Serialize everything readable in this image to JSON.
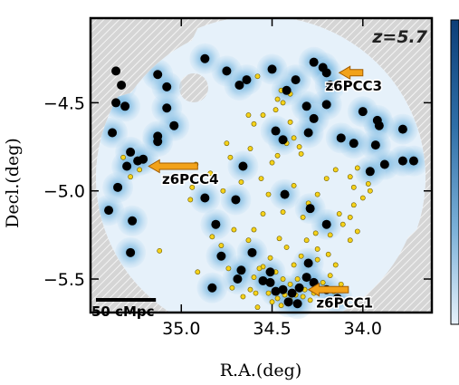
{
  "chart_data": {
    "type": "scatter",
    "title": "",
    "xlabel": "R.A.(deg)",
    "ylabel": "Decl.(deg)",
    "xlim": [
      35.5,
      33.62
    ],
    "ylim": [
      -5.69,
      -4.02
    ],
    "x_reversed": true,
    "xticks": [
      35.0,
      34.5,
      34.0
    ],
    "xtick_labels": [
      "35.0",
      "34.5",
      "34.0"
    ],
    "yticks": [
      -4.5,
      -5.0,
      -5.5
    ],
    "ytick_labels": [
      "−4.5",
      "−5.0",
      "−5.5"
    ],
    "annotations": {
      "redshift": "z=5.7",
      "scale_bar": "50 cMpc",
      "scale_bar_length_deg": 0.33
    },
    "protoclusters": [
      {
        "label": "z6PCC3",
        "ra": 34.13,
        "dec": -4.33,
        "arrow_from": [
          34.0,
          -4.33
        ],
        "text_at": [
          34.05,
          -4.4
        ]
      },
      {
        "label": "z6PCC4",
        "ra": 35.18,
        "dec": -4.86,
        "arrow_from": [
          34.91,
          -4.86
        ],
        "text_at": [
          34.95,
          -4.93
        ]
      },
      {
        "label": "z6PCC1",
        "ra": 34.3,
        "dec": -5.56,
        "arrow_from": [
          34.08,
          -5.56
        ],
        "text_at": [
          34.1,
          -5.63
        ]
      }
    ],
    "series": [
      {
        "name": "",
        "role": "bright galaxies with density halo",
        "marker": "black-disc",
        "points": [
          [
            35.36,
            -4.32
          ],
          [
            35.33,
            -4.4
          ],
          [
            35.36,
            -4.5
          ],
          [
            35.31,
            -4.52
          ],
          [
            35.13,
            -4.34
          ],
          [
            35.08,
            -4.41
          ],
          [
            34.87,
            -4.25
          ],
          [
            34.75,
            -4.32
          ],
          [
            34.68,
            -4.4
          ],
          [
            34.64,
            -4.37
          ],
          [
            34.5,
            -4.31
          ],
          [
            34.37,
            -4.37
          ],
          [
            34.27,
            -4.27
          ],
          [
            34.22,
            -4.3
          ],
          [
            34.2,
            -4.33
          ],
          [
            34.18,
            -4.4
          ],
          [
            34.0,
            -4.55
          ],
          [
            33.92,
            -4.6
          ],
          [
            33.91,
            -4.63
          ],
          [
            33.93,
            -4.74
          ],
          [
            33.78,
            -4.65
          ],
          [
            33.78,
            -4.83
          ],
          [
            33.72,
            -4.83
          ],
          [
            33.88,
            -4.85
          ],
          [
            33.96,
            -4.89
          ],
          [
            34.2,
            -4.51
          ],
          [
            34.12,
            -4.7
          ],
          [
            34.05,
            -4.73
          ],
          [
            34.42,
            -4.43
          ],
          [
            34.31,
            -4.52
          ],
          [
            34.27,
            -4.59
          ],
          [
            34.3,
            -4.67
          ],
          [
            34.48,
            -4.66
          ],
          [
            34.44,
            -4.71
          ],
          [
            35.08,
            -4.53
          ],
          [
            35.04,
            -4.63
          ],
          [
            35.13,
            -4.69
          ],
          [
            35.13,
            -4.72
          ],
          [
            35.38,
            -4.67
          ],
          [
            35.28,
            -4.78
          ],
          [
            35.21,
            -4.82
          ],
          [
            35.24,
            -4.83
          ],
          [
            35.3,
            -4.86
          ],
          [
            35.35,
            -4.98
          ],
          [
            35.27,
            -5.17
          ],
          [
            35.4,
            -5.11
          ],
          [
            35.28,
            -5.35
          ],
          [
            34.87,
            -5.04
          ],
          [
            34.81,
            -5.19
          ],
          [
            34.7,
            -5.05
          ],
          [
            34.66,
            -4.86
          ],
          [
            34.43,
            -5.02
          ],
          [
            34.29,
            -5.1
          ],
          [
            34.2,
            -5.19
          ],
          [
            34.61,
            -5.35
          ],
          [
            34.78,
            -5.37
          ],
          [
            34.83,
            -5.55
          ],
          [
            34.69,
            -5.5
          ],
          [
            34.67,
            -5.45
          ],
          [
            34.51,
            -5.46
          ],
          [
            34.51,
            -5.52
          ],
          [
            34.55,
            -5.51
          ],
          [
            34.48,
            -5.57
          ],
          [
            34.44,
            -5.56
          ],
          [
            34.39,
            -5.58
          ],
          [
            34.35,
            -5.55
          ],
          [
            34.31,
            -5.49
          ],
          [
            34.3,
            -5.41
          ],
          [
            34.27,
            -5.52
          ],
          [
            34.2,
            -5.56
          ],
          [
            34.14,
            -5.61
          ],
          [
            34.41,
            -5.63
          ],
          [
            34.36,
            -5.64
          ]
        ]
      },
      {
        "name": "",
        "role": "faint candidates",
        "marker": "yellow-dot",
        "points": [
          [
            34.4,
            -4.45
          ],
          [
            34.47,
            -4.48
          ],
          [
            34.48,
            -4.54
          ],
          [
            34.44,
            -4.5
          ],
          [
            34.55,
            -4.57
          ],
          [
            34.58,
            -4.35
          ],
          [
            34.45,
            -4.43
          ],
          [
            34.63,
            -4.57
          ],
          [
            34.6,
            -4.62
          ],
          [
            34.4,
            -4.61
          ],
          [
            34.38,
            -4.7
          ],
          [
            34.42,
            -4.73
          ],
          [
            34.35,
            -4.75
          ],
          [
            34.47,
            -4.8
          ],
          [
            34.34,
            -4.79
          ],
          [
            34.73,
            -4.81
          ],
          [
            34.75,
            -4.73
          ],
          [
            34.62,
            -4.76
          ],
          [
            34.5,
            -4.84
          ],
          [
            34.92,
            -4.85
          ],
          [
            34.84,
            -4.9
          ],
          [
            34.77,
            -5.0
          ],
          [
            34.94,
            -4.98
          ],
          [
            34.95,
            -5.05
          ],
          [
            35.14,
            -4.86
          ],
          [
            35.23,
            -4.88
          ],
          [
            35.24,
            -4.82
          ],
          [
            35.32,
            -4.81
          ],
          [
            35.28,
            -4.92
          ],
          [
            34.44,
            -5.12
          ],
          [
            34.33,
            -5.15
          ],
          [
            34.3,
            -5.07
          ],
          [
            34.25,
            -5.02
          ],
          [
            34.2,
            -4.93
          ],
          [
            34.15,
            -4.88
          ],
          [
            34.03,
            -4.87
          ],
          [
            34.07,
            -4.92
          ],
          [
            34.05,
            -4.98
          ],
          [
            33.97,
            -4.96
          ],
          [
            33.96,
            -5.0
          ],
          [
            34.0,
            -5.04
          ],
          [
            34.05,
            -5.08
          ],
          [
            34.07,
            -5.15
          ],
          [
            34.13,
            -5.13
          ],
          [
            34.11,
            -5.19
          ],
          [
            34.03,
            -5.23
          ],
          [
            34.07,
            -5.28
          ],
          [
            34.18,
            -5.25
          ],
          [
            34.26,
            -5.24
          ],
          [
            34.31,
            -5.28
          ],
          [
            34.25,
            -5.33
          ],
          [
            34.19,
            -5.36
          ],
          [
            34.15,
            -5.42
          ],
          [
            34.25,
            -5.39
          ],
          [
            34.34,
            -5.37
          ],
          [
            34.38,
            -5.42
          ],
          [
            34.42,
            -5.32
          ],
          [
            34.46,
            -5.27
          ],
          [
            34.51,
            -5.38
          ],
          [
            34.48,
            -5.46
          ],
          [
            34.55,
            -5.43
          ],
          [
            34.44,
            -5.5
          ],
          [
            34.4,
            -5.53
          ],
          [
            34.36,
            -5.5
          ],
          [
            34.32,
            -5.56
          ],
          [
            34.27,
            -5.58
          ],
          [
            34.22,
            -5.52
          ],
          [
            34.18,
            -5.48
          ],
          [
            34.16,
            -5.57
          ],
          [
            34.43,
            -5.59
          ],
          [
            34.47,
            -5.61
          ],
          [
            34.52,
            -5.58
          ],
          [
            34.4,
            -5.62
          ],
          [
            34.33,
            -5.6
          ],
          [
            34.29,
            -5.62
          ],
          [
            34.37,
            -5.59
          ],
          [
            34.45,
            -5.65
          ],
          [
            34.5,
            -5.63
          ],
          [
            34.59,
            -5.58
          ],
          [
            34.62,
            -5.56
          ],
          [
            34.66,
            -5.6
          ],
          [
            34.72,
            -5.55
          ],
          [
            34.6,
            -5.49
          ],
          [
            34.57,
            -5.44
          ],
          [
            34.74,
            -5.44
          ],
          [
            34.78,
            -5.31
          ],
          [
            34.83,
            -5.26
          ],
          [
            34.63,
            -5.28
          ],
          [
            34.71,
            -5.22
          ],
          [
            34.55,
            -5.13
          ],
          [
            34.6,
            -5.22
          ],
          [
            35.12,
            -5.34
          ],
          [
            34.91,
            -5.46
          ],
          [
            34.58,
            -5.66
          ],
          [
            34.2,
            -5.65
          ],
          [
            34.12,
            -5.53
          ],
          [
            34.56,
            -4.93
          ],
          [
            34.67,
            -4.95
          ],
          [
            34.52,
            -5.02
          ],
          [
            34.38,
            -4.97
          ]
        ]
      }
    ]
  }
}
